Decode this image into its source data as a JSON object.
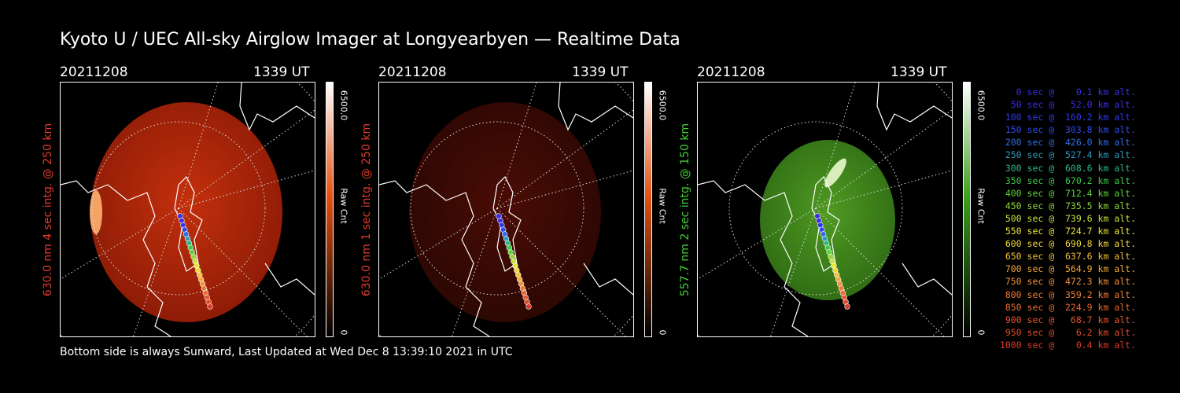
{
  "title": "Kyoto U / UEC All-sky Airglow Imager at Longyearbyen — Realtime Data",
  "footer": "Bottom side is always Sunward, Last Updated at Wed Dec  8 13:39:10 2021 in UTC",
  "panels": [
    {
      "date": "20211208",
      "time": "1339 UT",
      "ylabel": "630.0 nm 4 sec intg. @ 250 km",
      "label_color": "#e03a2a",
      "image_color": "#8a1a06",
      "image_glow": "#c3300c",
      "cbar_max": "6500.0",
      "cbar_min": "0",
      "cbar_label": "Raw Cnt",
      "cbar_top": "#ffffff",
      "cbar_mid": "#e35010",
      "cbar_bottom": "#000000"
    },
    {
      "date": "20211208",
      "time": "1339 UT",
      "ylabel": "630.0 nm 1 sec intg. @ 250 km",
      "label_color": "#e03a2a",
      "image_color": "#2a0703",
      "image_glow": "#4a0c05",
      "cbar_max": "6500.0",
      "cbar_min": "0",
      "cbar_label": "Raw Cnt",
      "cbar_top": "#ffffff",
      "cbar_mid": "#e35010",
      "cbar_bottom": "#000000"
    },
    {
      "date": "20211208",
      "time": "1339 UT",
      "ylabel": "557.7 nm 2 sec intg. @ 150 km",
      "label_color": "#3fcf2f",
      "image_color": "#2e6a14",
      "image_glow": "#4f9a22",
      "cbar_max": "6500.0",
      "cbar_min": "0",
      "cbar_label": "Raw Cnt",
      "cbar_top": "#ffffff",
      "cbar_mid": "#3aa01a",
      "cbar_bottom": "#000000"
    }
  ],
  "legend": [
    {
      "text": "   0 sec @    0.1 km alt.",
      "color": "#3a2ee0"
    },
    {
      "text": "  50 sec @   52.0 km alt.",
      "color": "#3a2ee0"
    },
    {
      "text": " 100 sec @  160.2 km alt.",
      "color": "#2e3ae8"
    },
    {
      "text": " 150 sec @  303.8 km alt.",
      "color": "#2e4ae8"
    },
    {
      "text": " 200 sec @  426.0 km alt.",
      "color": "#2f6ce8"
    },
    {
      "text": " 250 sec @  527.4 km alt.",
      "color": "#2f9ab8"
    },
    {
      "text": " 300 sec @  608.6 km alt.",
      "color": "#2fb880"
    },
    {
      "text": " 350 sec @  670.2 km alt.",
      "color": "#3ec84a"
    },
    {
      "text": " 400 sec @  712.4 km alt.",
      "color": "#5ed23a"
    },
    {
      "text": " 450 sec @  735.5 km alt.",
      "color": "#8ed83a"
    },
    {
      "text": " 500 sec @  739.6 km alt.",
      "color": "#c8e03a"
    },
    {
      "text": " 550 sec @  724.7 km alt.",
      "color": "#e8e63a"
    },
    {
      "text": " 600 sec @  690.8 km alt.",
      "color": "#f0d83a"
    },
    {
      "text": " 650 sec @  637.6 km alt.",
      "color": "#f0c03a"
    },
    {
      "text": " 700 sec @  564.9 km alt.",
      "color": "#f0a83a"
    },
    {
      "text": " 750 sec @  472.3 km alt.",
      "color": "#f0903a"
    },
    {
      "text": " 800 sec @  359.2 km alt.",
      "color": "#ee7a34"
    },
    {
      "text": " 850 sec @  224.9 km alt.",
      "color": "#ea6a30"
    },
    {
      "text": " 900 sec @   68.7 km alt.",
      "color": "#e6562c"
    },
    {
      "text": " 950 sec @    6.2 km alt.",
      "color": "#e24a2a"
    },
    {
      "text": "1000 sec @    0.4 km alt.",
      "color": "#de3a28"
    }
  ]
}
